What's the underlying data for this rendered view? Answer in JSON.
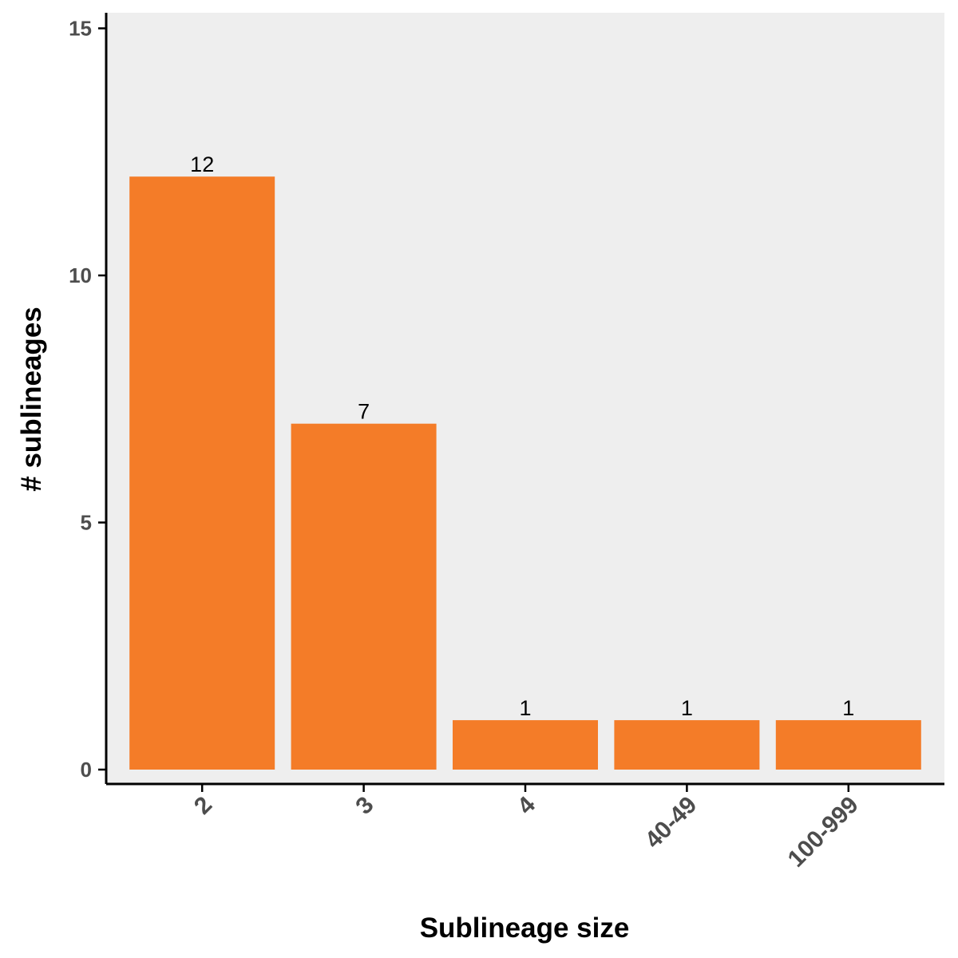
{
  "colors": {
    "bar": "#F47C28",
    "panel": "#EEEEEE",
    "axis": "#000000"
  },
  "chart_data": {
    "type": "bar",
    "categories": [
      "2",
      "3",
      "4",
      "40-49",
      "100-999"
    ],
    "values": [
      12,
      7,
      1,
      1,
      1
    ],
    "data_labels": [
      "12",
      "7",
      "1",
      "1",
      "1"
    ],
    "xlabel": "Sublineage size",
    "ylabel": "# sublineages",
    "ylim": [
      0,
      15
    ],
    "yticks": [
      0,
      5,
      10,
      15
    ],
    "grid": false,
    "legend": "none"
  }
}
